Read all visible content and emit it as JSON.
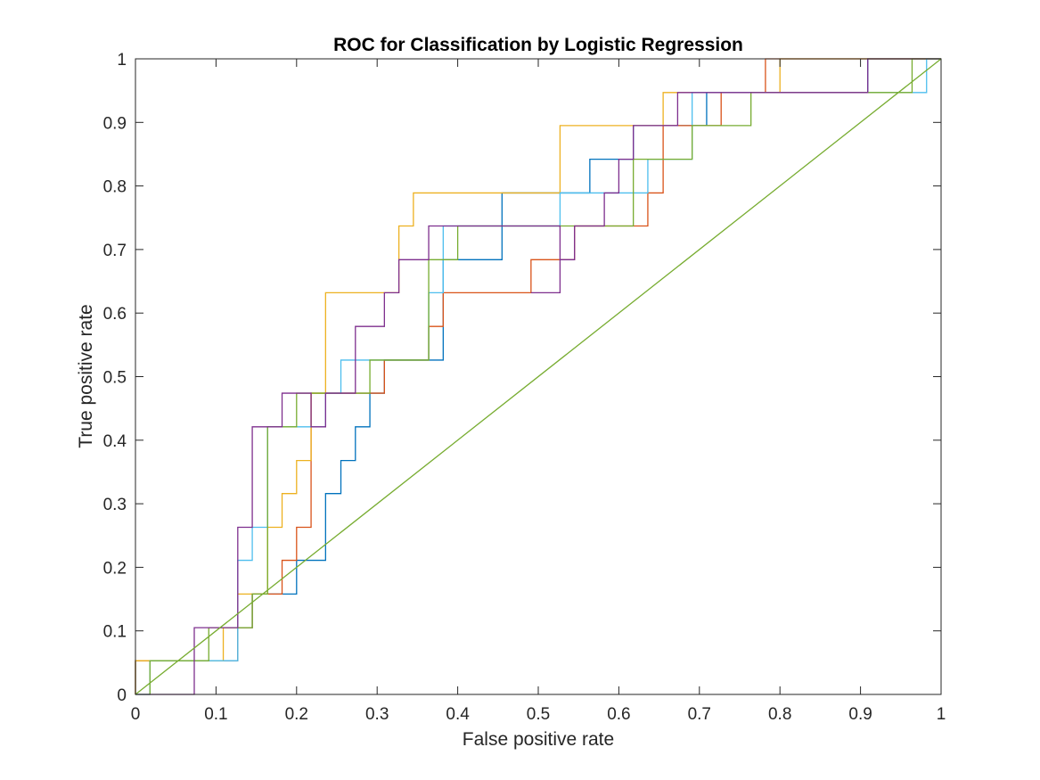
{
  "chart_data": {
    "type": "line",
    "title": "ROC for Classification by Logistic Regression",
    "xlabel": "False positive rate",
    "ylabel": "True positive rate",
    "xlim": [
      0,
      1
    ],
    "ylim": [
      0,
      1
    ],
    "xticks": [
      "0",
      "0.1",
      "0.2",
      "0.3",
      "0.4",
      "0.5",
      "0.6",
      "0.7",
      "0.8",
      "0.9",
      "1"
    ],
    "yticks": [
      "0",
      "0.1",
      "0.2",
      "0.3",
      "0.4",
      "0.5",
      "0.6",
      "0.7",
      "0.8",
      "0.9",
      "1"
    ],
    "grid": false,
    "legend": "none",
    "line_style": "step",
    "series": [
      {
        "color": "#0072BD",
        "points": [
          [
            0,
            0
          ],
          [
            0,
            0.053
          ],
          [
            0.018,
            0.053
          ],
          [
            0.127,
            0.053
          ],
          [
            0.127,
            0.105
          ],
          [
            0.145,
            0.105
          ],
          [
            0.145,
            0.158
          ],
          [
            0.2,
            0.158
          ],
          [
            0.2,
            0.211
          ],
          [
            0.236,
            0.211
          ],
          [
            0.236,
            0.316
          ],
          [
            0.255,
            0.316
          ],
          [
            0.255,
            0.368
          ],
          [
            0.273,
            0.368
          ],
          [
            0.273,
            0.421
          ],
          [
            0.291,
            0.421
          ],
          [
            0.291,
            0.474
          ],
          [
            0.309,
            0.474
          ],
          [
            0.309,
            0.526
          ],
          [
            0.382,
            0.526
          ],
          [
            0.382,
            0.684
          ],
          [
            0.455,
            0.684
          ],
          [
            0.455,
            0.789
          ],
          [
            0.564,
            0.789
          ],
          [
            0.564,
            0.842
          ],
          [
            0.618,
            0.842
          ],
          [
            0.618,
            0.895
          ],
          [
            0.709,
            0.895
          ],
          [
            0.709,
            0.947
          ],
          [
            0.909,
            0.947
          ],
          [
            0.909,
            1.0
          ],
          [
            1.0,
            1.0
          ]
        ]
      },
      {
        "color": "#D95319",
        "points": [
          [
            0,
            0
          ],
          [
            0,
            0.053
          ],
          [
            0.018,
            0.053
          ],
          [
            0.127,
            0.053
          ],
          [
            0.127,
            0.105
          ],
          [
            0.145,
            0.105
          ],
          [
            0.145,
            0.158
          ],
          [
            0.182,
            0.158
          ],
          [
            0.182,
            0.211
          ],
          [
            0.2,
            0.211
          ],
          [
            0.2,
            0.263
          ],
          [
            0.218,
            0.263
          ],
          [
            0.218,
            0.474
          ],
          [
            0.309,
            0.474
          ],
          [
            0.309,
            0.526
          ],
          [
            0.364,
            0.526
          ],
          [
            0.364,
            0.579
          ],
          [
            0.382,
            0.579
          ],
          [
            0.382,
            0.632
          ],
          [
            0.491,
            0.632
          ],
          [
            0.491,
            0.684
          ],
          [
            0.545,
            0.684
          ],
          [
            0.545,
            0.737
          ],
          [
            0.636,
            0.737
          ],
          [
            0.636,
            0.789
          ],
          [
            0.655,
            0.789
          ],
          [
            0.655,
            0.895
          ],
          [
            0.727,
            0.895
          ],
          [
            0.727,
            0.947
          ],
          [
            0.782,
            0.947
          ],
          [
            0.782,
            1.0
          ],
          [
            1.0,
            1.0
          ]
        ]
      },
      {
        "color": "#EDB120",
        "points": [
          [
            0,
            0
          ],
          [
            0,
            0.053
          ],
          [
            0.018,
            0.053
          ],
          [
            0.109,
            0.053
          ],
          [
            0.109,
            0.105
          ],
          [
            0.127,
            0.105
          ],
          [
            0.127,
            0.158
          ],
          [
            0.164,
            0.158
          ],
          [
            0.164,
            0.263
          ],
          [
            0.182,
            0.263
          ],
          [
            0.182,
            0.316
          ],
          [
            0.2,
            0.316
          ],
          [
            0.2,
            0.368
          ],
          [
            0.218,
            0.368
          ],
          [
            0.218,
            0.474
          ],
          [
            0.236,
            0.474
          ],
          [
            0.236,
            0.632
          ],
          [
            0.327,
            0.632
          ],
          [
            0.327,
            0.737
          ],
          [
            0.345,
            0.737
          ],
          [
            0.345,
            0.789
          ],
          [
            0.527,
            0.789
          ],
          [
            0.527,
            0.895
          ],
          [
            0.655,
            0.895
          ],
          [
            0.655,
            0.947
          ],
          [
            0.8,
            0.947
          ],
          [
            0.8,
            1.0
          ],
          [
            1.0,
            1.0
          ]
        ]
      },
      {
        "color": "#4DBEEE",
        "points": [
          [
            0,
            0
          ],
          [
            0.018,
            0
          ],
          [
            0.018,
            0.053
          ],
          [
            0.127,
            0.053
          ],
          [
            0.127,
            0.211
          ],
          [
            0.145,
            0.211
          ],
          [
            0.145,
            0.263
          ],
          [
            0.164,
            0.263
          ],
          [
            0.164,
            0.421
          ],
          [
            0.236,
            0.421
          ],
          [
            0.236,
            0.474
          ],
          [
            0.255,
            0.474
          ],
          [
            0.255,
            0.526
          ],
          [
            0.364,
            0.526
          ],
          [
            0.364,
            0.632
          ],
          [
            0.382,
            0.632
          ],
          [
            0.382,
            0.737
          ],
          [
            0.527,
            0.737
          ],
          [
            0.527,
            0.789
          ],
          [
            0.636,
            0.789
          ],
          [
            0.636,
            0.842
          ],
          [
            0.691,
            0.842
          ],
          [
            0.691,
            0.947
          ],
          [
            0.982,
            0.947
          ],
          [
            0.982,
            1.0
          ],
          [
            1.0,
            1.0
          ]
        ]
      },
      {
        "color": "#77AC30",
        "points": [
          [
            0,
            0
          ],
          [
            0.018,
            0
          ],
          [
            0.018,
            0.053
          ],
          [
            0.091,
            0.053
          ],
          [
            0.091,
            0.105
          ],
          [
            0.145,
            0.105
          ],
          [
            0.145,
            0.158
          ],
          [
            0.164,
            0.158
          ],
          [
            0.164,
            0.421
          ],
          [
            0.2,
            0.421
          ],
          [
            0.2,
            0.474
          ],
          [
            0.291,
            0.474
          ],
          [
            0.291,
            0.526
          ],
          [
            0.364,
            0.526
          ],
          [
            0.364,
            0.684
          ],
          [
            0.4,
            0.684
          ],
          [
            0.4,
            0.737
          ],
          [
            0.618,
            0.737
          ],
          [
            0.618,
            0.842
          ],
          [
            0.691,
            0.842
          ],
          [
            0.691,
            0.895
          ],
          [
            0.764,
            0.895
          ],
          [
            0.764,
            0.947
          ],
          [
            0.964,
            0.947
          ],
          [
            0.964,
            1.0
          ],
          [
            1.0,
            1.0
          ]
        ]
      },
      {
        "color": "#7E2F8E",
        "points": [
          [
            0,
            0
          ],
          [
            0.018,
            0
          ],
          [
            0.073,
            0
          ],
          [
            0.073,
            0.105
          ],
          [
            0.127,
            0.105
          ],
          [
            0.127,
            0.263
          ],
          [
            0.145,
            0.263
          ],
          [
            0.145,
            0.421
          ],
          [
            0.182,
            0.421
          ],
          [
            0.182,
            0.474
          ],
          [
            0.218,
            0.474
          ],
          [
            0.218,
            0.421
          ],
          [
            0.236,
            0.421
          ],
          [
            0.236,
            0.474
          ],
          [
            0.273,
            0.474
          ],
          [
            0.273,
            0.579
          ],
          [
            0.309,
            0.579
          ],
          [
            0.309,
            0.632
          ],
          [
            0.327,
            0.632
          ],
          [
            0.327,
            0.684
          ],
          [
            0.364,
            0.684
          ],
          [
            0.364,
            0.737
          ],
          [
            0.527,
            0.737
          ],
          [
            0.527,
            0.632
          ],
          [
            0.491,
            0.632
          ],
          [
            0.491,
            0.632
          ],
          [
            0.527,
            0.632
          ],
          [
            0.527,
            0.684
          ],
          [
            0.545,
            0.684
          ],
          [
            0.545,
            0.737
          ],
          [
            0.582,
            0.737
          ],
          [
            0.582,
            0.789
          ],
          [
            0.6,
            0.789
          ],
          [
            0.6,
            0.842
          ],
          [
            0.618,
            0.842
          ],
          [
            0.618,
            0.895
          ],
          [
            0.673,
            0.895
          ],
          [
            0.673,
            0.947
          ],
          [
            0.8,
            0.947
          ],
          [
            0.8,
            0.947
          ],
          [
            0.909,
            0.947
          ],
          [
            0.909,
            1.0
          ],
          [
            0.982,
            1.0
          ],
          [
            1.0,
            1.0
          ]
        ]
      },
      {
        "color": "#77AC30",
        "points": [
          [
            0,
            0
          ],
          [
            1,
            1
          ]
        ]
      }
    ]
  }
}
